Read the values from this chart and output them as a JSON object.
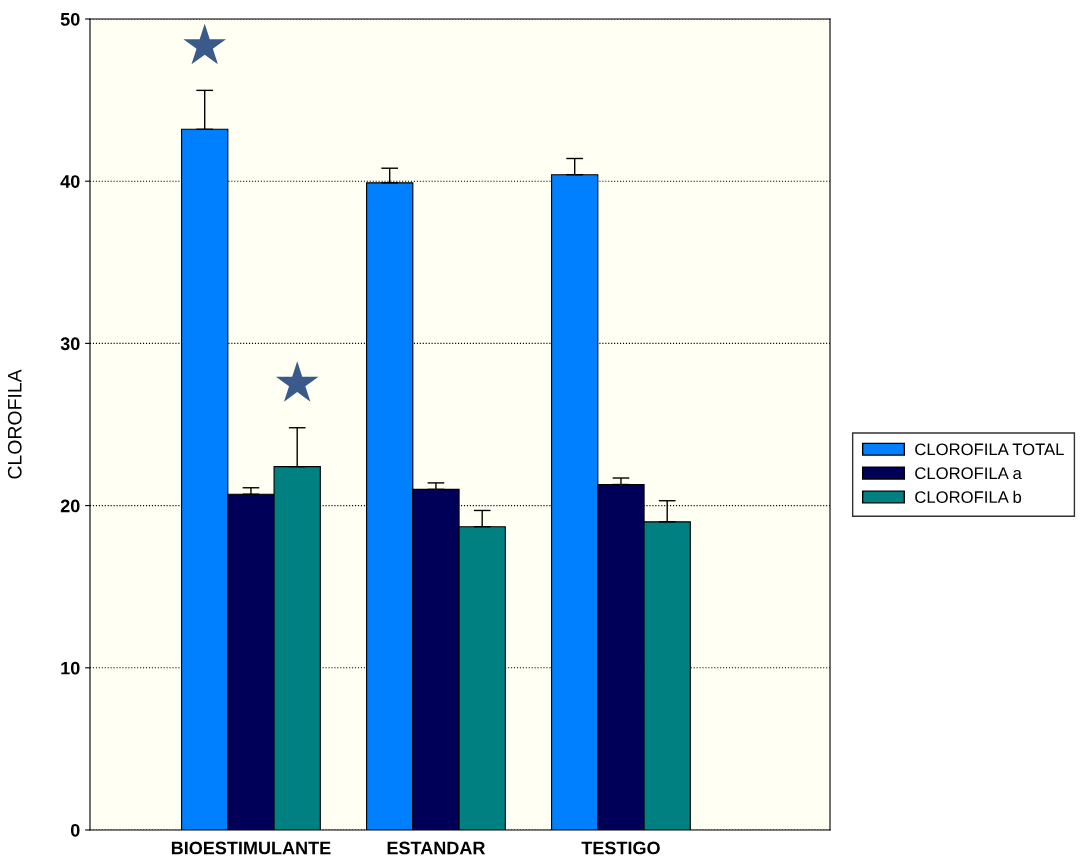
{
  "chart_data": {
    "type": "bar",
    "ylabel": "CLOROFILA",
    "categories": [
      "BIOESTIMULANTE",
      "ESTANDAR",
      "TESTIGO"
    ],
    "series": [
      {
        "name": "CLOROFILA TOTAL",
        "color": "#0080ff",
        "values": [
          43.2,
          39.9,
          40.4
        ],
        "errors": [
          [
            43.2,
            45.6
          ],
          [
            39.9,
            40.8
          ],
          [
            40.4,
            41.4
          ]
        ]
      },
      {
        "name": "CLOROFILA a",
        "color": "#000058",
        "values": [
          20.7,
          21.0,
          21.3
        ],
        "errors": [
          [
            20.7,
            21.1
          ],
          [
            21.0,
            21.4
          ],
          [
            21.3,
            21.7
          ]
        ]
      },
      {
        "name": "CLOROFILA b",
        "color": "#008080",
        "values": [
          22.4,
          18.7,
          19.0
        ],
        "errors": [
          [
            22.4,
            24.8
          ],
          [
            18.7,
            19.7
          ],
          [
            19.0,
            20.3
          ]
        ]
      }
    ],
    "ylim": [
      0,
      50
    ],
    "yticks": [
      0,
      10,
      20,
      30,
      40,
      50
    ],
    "grid": "y",
    "legend": "right",
    "annotations": [
      "★",
      "★"
    ]
  }
}
